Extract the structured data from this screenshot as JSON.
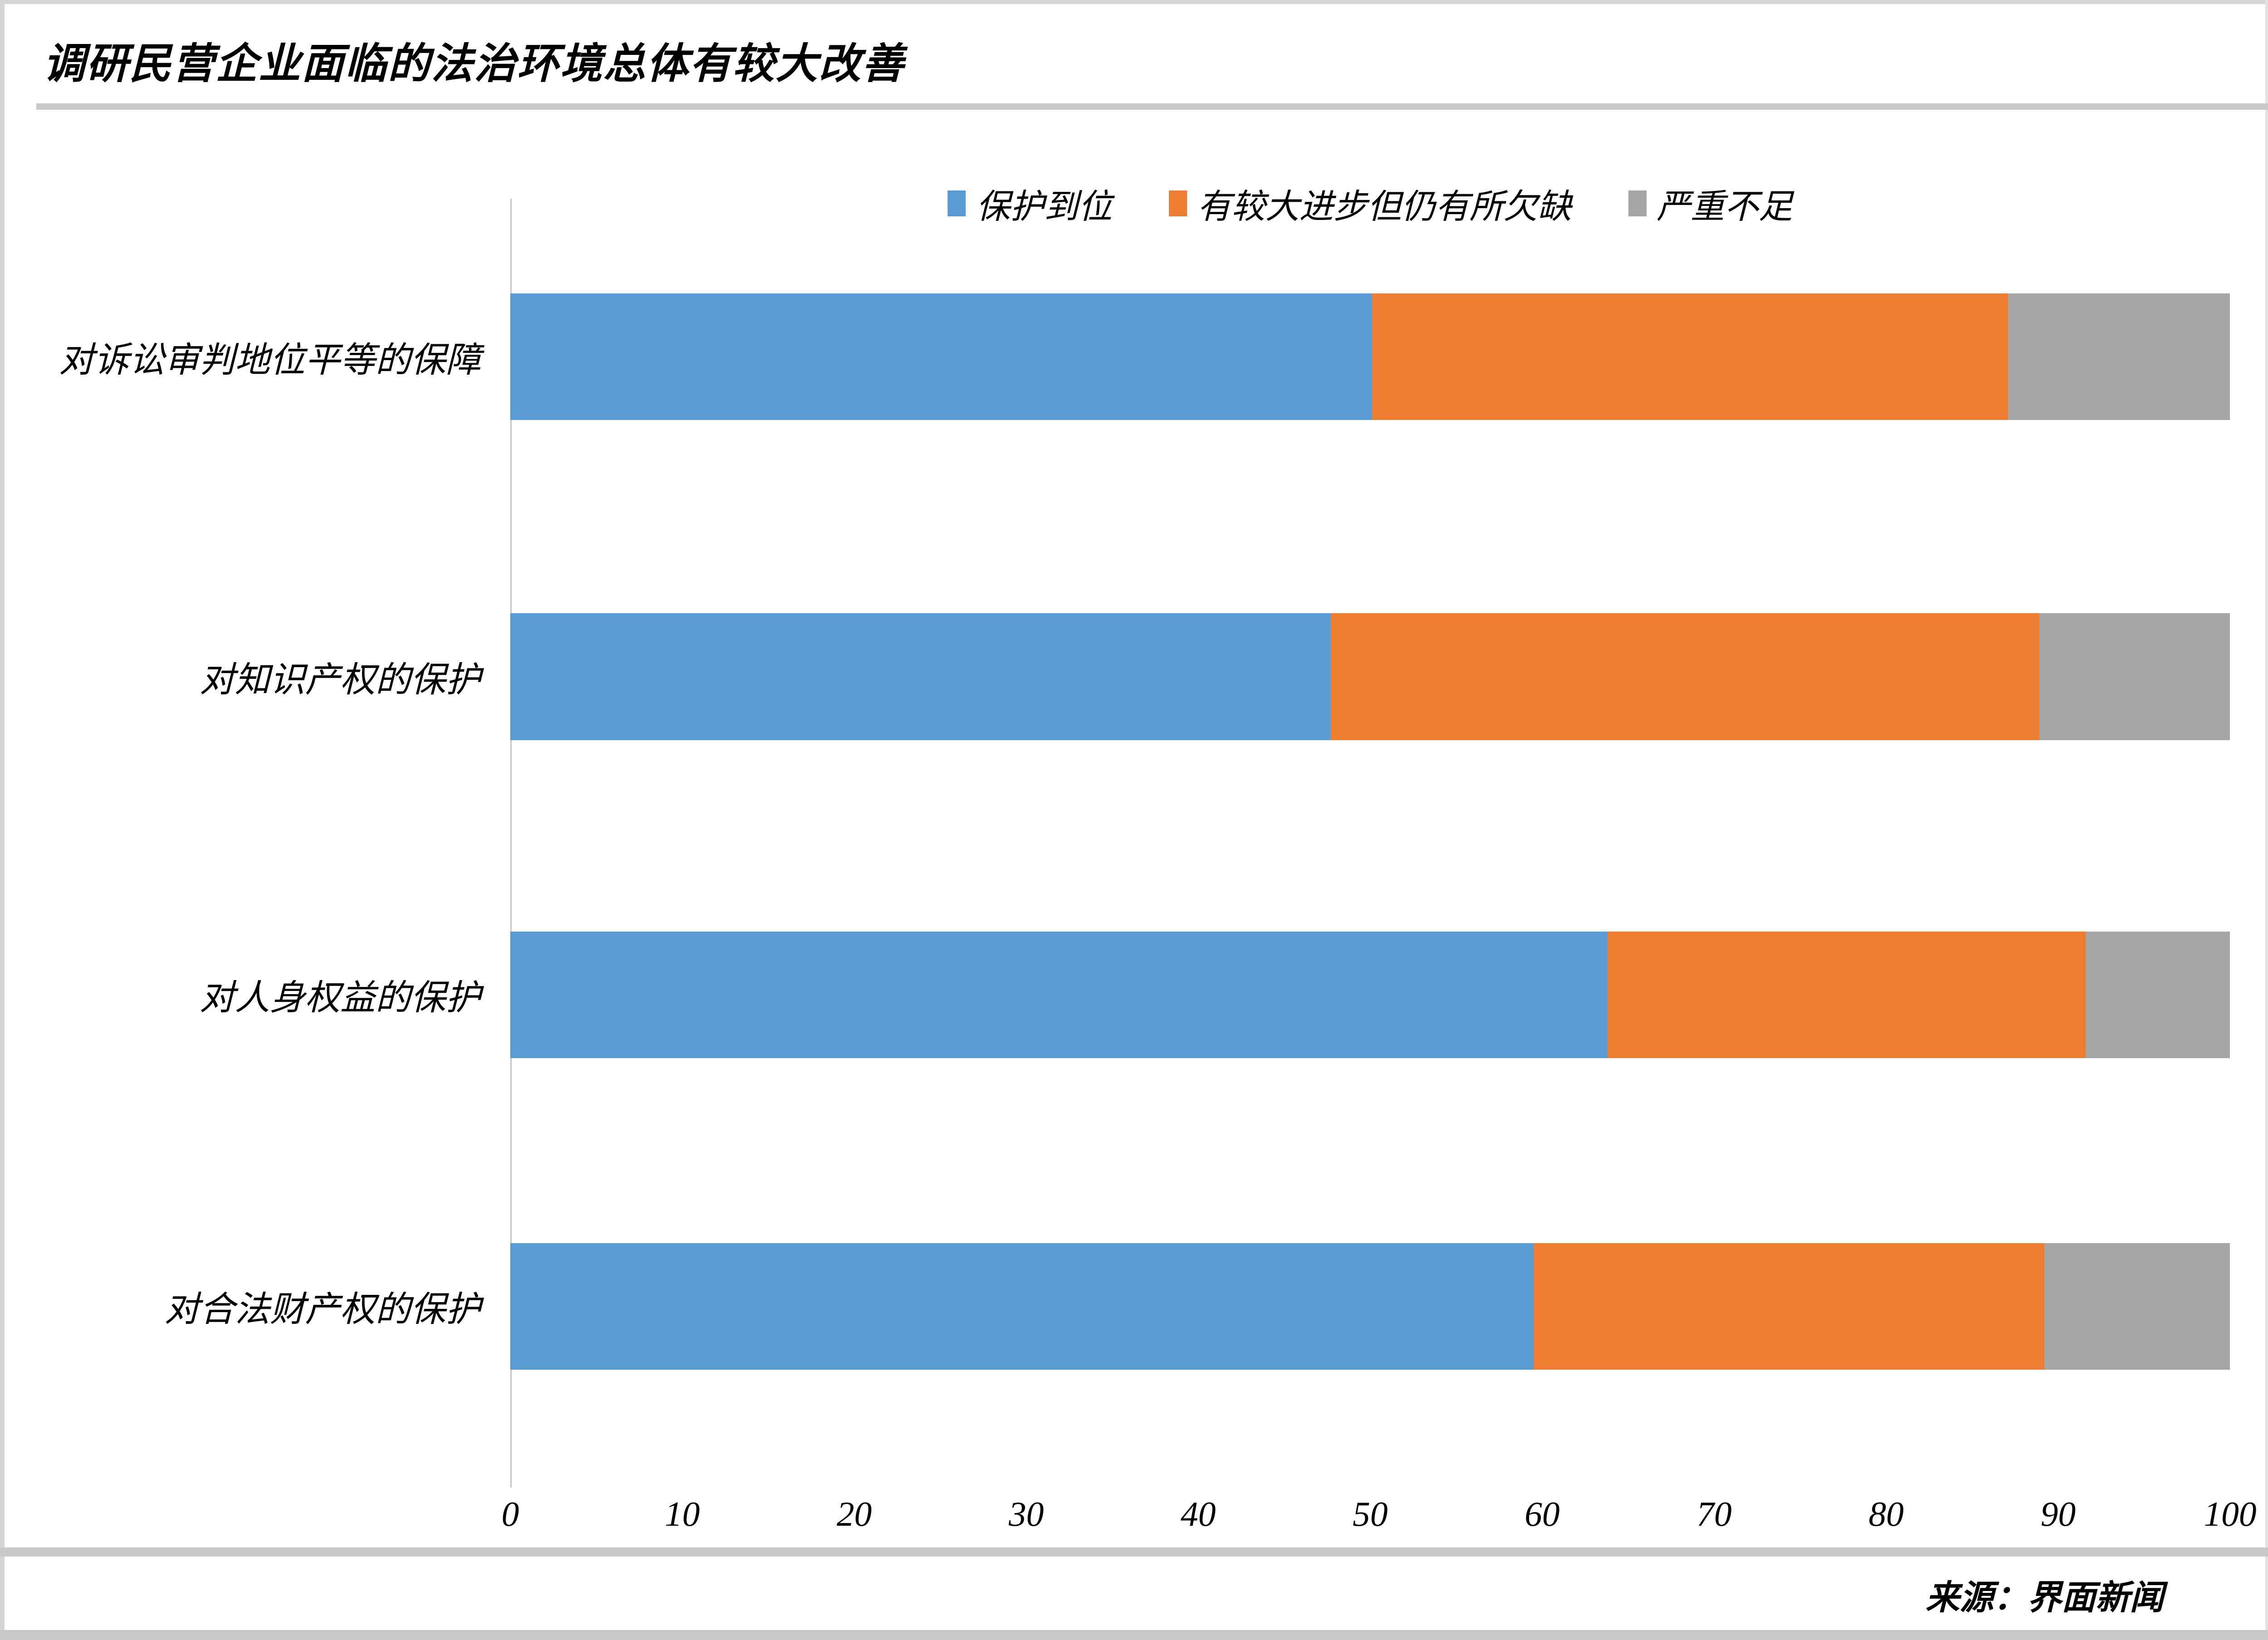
{
  "title": "调研民营企业面临的法治环境总体有较大改善",
  "source": "来源：界面新闻",
  "legend": {
    "items": [
      "保护到位",
      "有较大进步但仍有所欠缺",
      "严重不足"
    ]
  },
  "colors": {
    "series_blue": "#5B9BD5",
    "series_orange": "#ED7D31",
    "series_gray": "#A5A5A5",
    "rule_gray": "#C9C9C9"
  },
  "chart_data": {
    "type": "bar",
    "orientation": "horizontal",
    "stacked": true,
    "title": "调研民营企业面临的法治环境总体有较大改善",
    "categories": [
      "对诉讼审判地位平等的保障",
      "对知识产权的保护",
      "对人身权益的保护",
      "对合法财产权的保护"
    ],
    "series": [
      {
        "name": "保护到位",
        "color": "#5B9BD5",
        "values": [
          50.1,
          47.7,
          63.8,
          59.5
        ]
      },
      {
        "name": "有较大进步但仍有所欠缺",
        "color": "#ED7D31",
        "values": [
          37.0,
          41.2,
          27.8,
          29.7
        ]
      },
      {
        "name": "严重不足",
        "color": "#A5A5A5",
        "values": [
          12.9,
          11.1,
          8.4,
          10.8
        ]
      }
    ],
    "x_ticks": [
      0,
      10,
      20,
      30,
      40,
      50,
      60,
      70,
      80,
      90,
      100
    ],
    "xlim": [
      0,
      100
    ],
    "xlabel": "",
    "ylabel": "",
    "grid": false,
    "legend_position": "top",
    "source": "来源：界面新闻"
  }
}
